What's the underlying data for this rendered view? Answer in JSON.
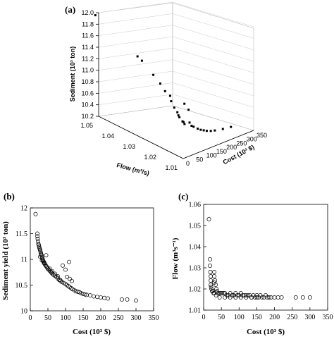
{
  "chart_data": [
    {
      "type": "scatter",
      "panel_label": "(a)",
      "xlabel": "Flow (m³/s)",
      "ylabel": "Cost (10³ $)",
      "zlabel": "Sediment (10³ ton)",
      "flow_ticks": [
        "1.05",
        "1.04",
        "1.03",
        "1.02",
        "1.01"
      ],
      "cost_ticks": [
        "0",
        "50",
        "100",
        "150",
        "200",
        "250",
        "300",
        "350"
      ],
      "sediment_ticks": [
        "12.0",
        "11.8",
        "11.6",
        "11.4",
        "11.2",
        "11.0",
        "10.8",
        "10.6",
        "10.4",
        "10.2"
      ],
      "points": [
        {
          "cost": 15,
          "flow": 1.053,
          "sediment": 11.88
        },
        {
          "cost": 25,
          "flow": 1.034,
          "sediment": 11.5
        },
        {
          "cost": 26,
          "flow": 1.032,
          "sediment": 11.46
        },
        {
          "cost": 30,
          "flow": 1.027,
          "sediment": 11.3
        },
        {
          "cost": 33,
          "flow": 1.024,
          "sediment": 11.2
        },
        {
          "cost": 36,
          "flow": 1.022,
          "sediment": 11.1
        },
        {
          "cost": 40,
          "flow": 1.02,
          "sediment": 11.05
        },
        {
          "cost": 45,
          "flow": 1.02,
          "sediment": 10.95
        },
        {
          "cost": 50,
          "flow": 1.019,
          "sediment": 10.85
        },
        {
          "cost": 55,
          "flow": 1.018,
          "sediment": 10.78
        },
        {
          "cost": 60,
          "flow": 1.018,
          "sediment": 10.72
        },
        {
          "cost": 65,
          "flow": 1.018,
          "sediment": 10.68
        },
        {
          "cost": 70,
          "flow": 1.017,
          "sediment": 10.62
        },
        {
          "cost": 75,
          "flow": 1.017,
          "sediment": 10.6
        },
        {
          "cost": 80,
          "flow": 1.017,
          "sediment": 10.56
        },
        {
          "cost": 90,
          "flow": 1.018,
          "sediment": 10.88
        },
        {
          "cost": 100,
          "flow": 1.017,
          "sediment": 10.78
        },
        {
          "cost": 105,
          "flow": 1.017,
          "sediment": 10.55
        },
        {
          "cost": 115,
          "flow": 1.017,
          "sediment": 10.48
        },
        {
          "cost": 125,
          "flow": 1.017,
          "sediment": 10.45
        },
        {
          "cost": 135,
          "flow": 1.016,
          "sediment": 10.42
        },
        {
          "cost": 150,
          "flow": 1.016,
          "sediment": 10.38
        },
        {
          "cost": 165,
          "flow": 1.016,
          "sediment": 10.35
        },
        {
          "cost": 180,
          "flow": 1.016,
          "sediment": 10.32
        },
        {
          "cost": 200,
          "flow": 1.016,
          "sediment": 10.29
        },
        {
          "cost": 220,
          "flow": 1.016,
          "sediment": 10.27
        },
        {
          "cost": 260,
          "flow": 1.016,
          "sediment": 10.24
        },
        {
          "cost": 300,
          "flow": 1.016,
          "sediment": 10.22
        }
      ]
    },
    {
      "type": "scatter",
      "panel_label": "(b)",
      "xlabel": "Cost (10³ $)",
      "ylabel": "Sediment  yield (10³ ton)",
      "xlim": [
        0,
        350
      ],
      "ylim": [
        10,
        12
      ],
      "xticks": [
        0,
        50,
        100,
        150,
        200,
        250,
        300,
        350
      ],
      "yticks": [
        10,
        10.5,
        11,
        11.5,
        12
      ],
      "ytick_labels": [
        "10",
        "10.5",
        "11",
        "11.5",
        "12"
      ],
      "x": [
        15,
        20,
        20,
        21,
        22,
        23,
        24,
        25,
        26,
        27,
        28,
        29,
        30,
        31,
        32,
        33,
        34,
        35,
        36,
        37,
        38,
        39,
        40,
        42,
        44,
        46,
        48,
        50,
        52,
        55,
        58,
        60,
        63,
        66,
        70,
        74,
        78,
        82,
        86,
        90,
        95,
        100,
        104,
        108,
        112,
        116,
        120,
        125,
        130,
        135,
        140,
        145,
        150,
        155,
        160,
        170,
        180,
        190,
        200,
        210,
        220,
        260,
        275,
        300,
        92,
        100,
        110,
        104,
        112,
        118,
        28,
        33,
        40,
        45,
        55,
        62,
        70,
        78,
        85
      ],
      "y": [
        11.88,
        11.5,
        11.45,
        11.4,
        11.35,
        11.3,
        11.28,
        11.25,
        11.22,
        11.2,
        11.18,
        11.15,
        11.12,
        11.1,
        11.08,
        11.05,
        11.03,
        11.0,
        10.98,
        10.97,
        10.95,
        10.93,
        10.92,
        10.9,
        10.88,
        10.86,
        10.84,
        10.82,
        10.8,
        10.78,
        10.76,
        10.74,
        10.72,
        10.7,
        10.68,
        10.66,
        10.63,
        10.6,
        10.58,
        10.56,
        10.54,
        10.52,
        10.5,
        10.48,
        10.46,
        10.44,
        10.42,
        10.4,
        10.38,
        10.37,
        10.36,
        10.34,
        10.33,
        10.32,
        10.31,
        10.3,
        10.28,
        10.27,
        10.26,
        10.25,
        10.24,
        10.22,
        10.22,
        10.2,
        10.88,
        10.8,
        10.95,
        10.66,
        10.62,
        10.58,
        11.05,
        10.98,
        10.93,
        11.08,
        10.82,
        10.77,
        10.72,
        10.67,
        10.6
      ]
    },
    {
      "type": "scatter",
      "panel_label": "(c)",
      "xlabel": "Cost (10³ $)",
      "ylabel": "Flow (m³s⁻¹)",
      "xlim": [
        0,
        350
      ],
      "ylim": [
        1.01,
        1.06
      ],
      "xticks": [
        0,
        50,
        100,
        150,
        200,
        250,
        300,
        350
      ],
      "yticks": [
        1.01,
        1.02,
        1.03,
        1.04,
        1.05,
        1.06
      ],
      "ytick_labels": [
        "1.01",
        "1.02",
        "1.03",
        "1.04",
        "1.05",
        "1.06"
      ],
      "x": [
        15,
        18,
        18,
        19,
        20,
        20,
        20,
        21,
        22,
        24,
        26,
        28,
        30,
        30,
        30,
        32,
        34,
        36,
        38,
        40,
        44,
        48,
        52,
        56,
        60,
        65,
        70,
        75,
        80,
        85,
        90,
        95,
        100,
        105,
        110,
        115,
        120,
        125,
        130,
        135,
        140,
        145,
        150,
        155,
        160,
        165,
        170,
        175,
        180,
        185,
        190,
        200,
        210,
        220,
        260,
        280,
        300,
        30,
        35,
        45,
        60,
        75,
        90,
        105,
        120,
        135,
        150
      ],
      "y": [
        1.053,
        1.034,
        1.031,
        1.028,
        1.026,
        1.024,
        1.022,
        1.021,
        1.02,
        1.019,
        1.019,
        1.018,
        1.018,
        1.028,
        1.026,
        1.024,
        1.022,
        1.02,
        1.019,
        1.018,
        1.018,
        1.018,
        1.018,
        1.018,
        1.018,
        1.017,
        1.017,
        1.018,
        1.017,
        1.017,
        1.018,
        1.017,
        1.017,
        1.018,
        1.017,
        1.017,
        1.017,
        1.017,
        1.017,
        1.016,
        1.017,
        1.016,
        1.017,
        1.016,
        1.017,
        1.016,
        1.016,
        1.017,
        1.016,
        1.016,
        1.016,
        1.016,
        1.016,
        1.016,
        1.016,
        1.016,
        1.016,
        1.023,
        1.017,
        1.016,
        1.016,
        1.016,
        1.016,
        1.016,
        1.016,
        1.016,
        1.016
      ]
    }
  ]
}
